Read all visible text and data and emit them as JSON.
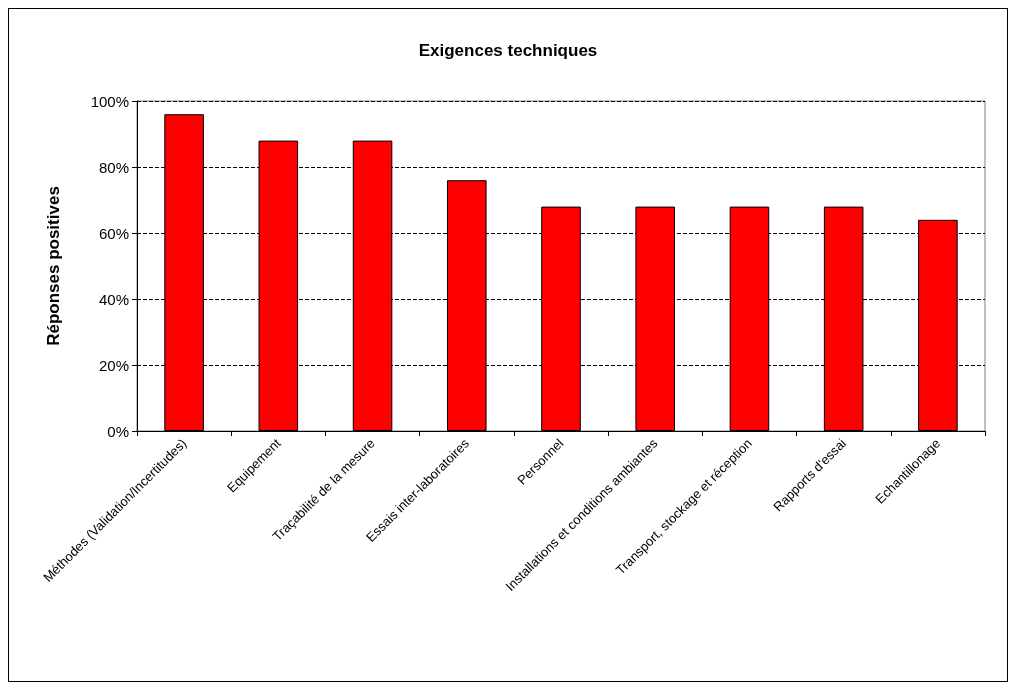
{
  "chart_data": {
    "type": "bar",
    "title": "Exigences techniques",
    "ylabel": "Réponses positives",
    "categories": [
      "Méthodes (Validation/Incertitudes)",
      "Equipement",
      "Traçabilité de la mesure",
      "Essais inter-laboratoires",
      "Personnel",
      "Installations et conditions ambiantes",
      "Transport, stockage et réception",
      "Rapports d'essai",
      "Echantillonage"
    ],
    "values": [
      96,
      88,
      88,
      76,
      68,
      68,
      68,
      68,
      64
    ],
    "color": "#ff0000",
    "ylim": [
      0,
      100
    ],
    "yticks": [
      {
        "value": 0,
        "label": "0%"
      },
      {
        "value": 20,
        "label": "20%"
      },
      {
        "value": 40,
        "label": "40%"
      },
      {
        "value": 60,
        "label": "60%"
      },
      {
        "value": 80,
        "label": "80%"
      },
      {
        "value": 100,
        "label": "100%"
      }
    ],
    "grid": "y"
  }
}
